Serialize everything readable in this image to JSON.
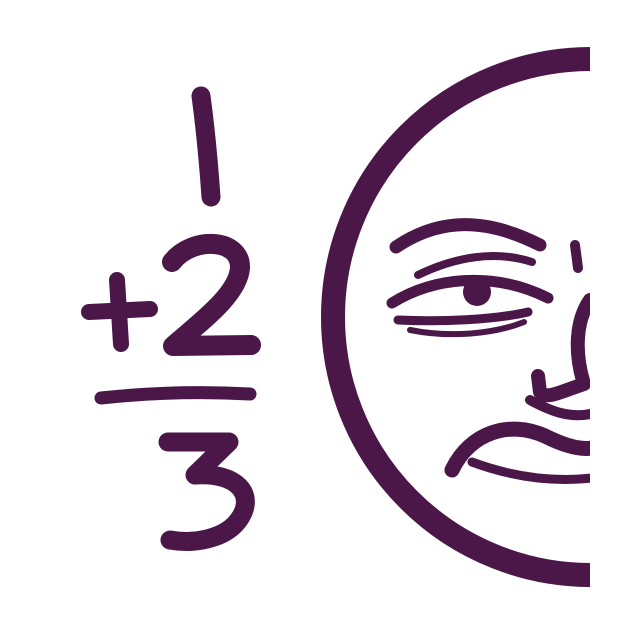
{
  "logo": {
    "name": "half-moon-face-addition-logo",
    "color": "#4a1748",
    "background": "#ffffff",
    "equation": {
      "addend_top": "1",
      "operator": "+",
      "addend_bottom": "2",
      "sum": "3"
    }
  }
}
